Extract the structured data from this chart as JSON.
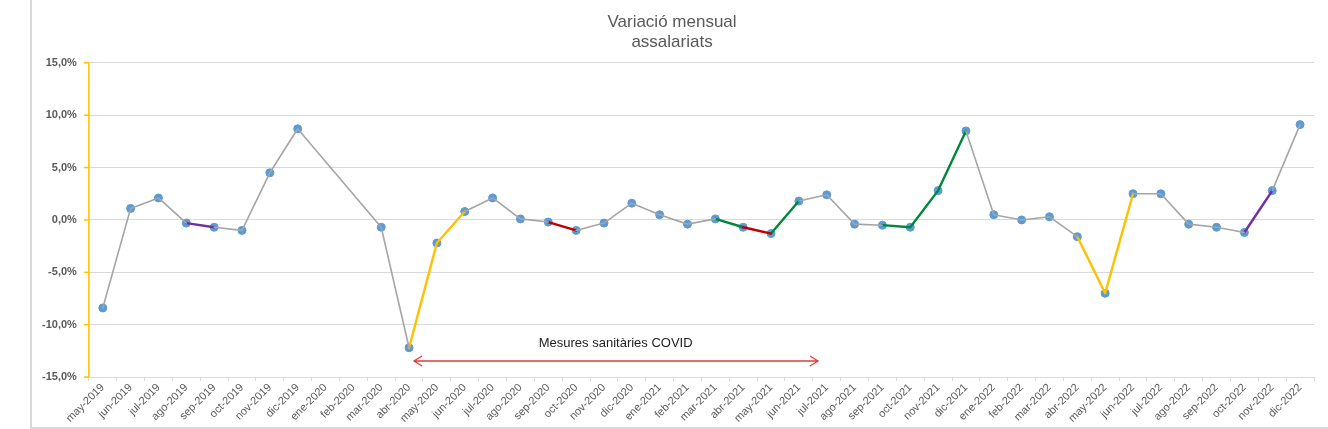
{
  "chart_data": {
    "type": "line",
    "title": "Variació mensual\nassalariats",
    "categories": [
      "may-2019",
      "jun-2019",
      "jul-2019",
      "ago-2019",
      "sep-2019",
      "oct-2019",
      "nov-2019",
      "dic-2019",
      "ene-2020",
      "feb-2020",
      "mar-2020",
      "abr-2020",
      "may-2020",
      "jun-2020",
      "jul-2020",
      "ago-2020",
      "sep-2020",
      "oct-2020",
      "nov-2020",
      "dic-2020",
      "ene-2021",
      "feb-2021",
      "mar-2021",
      "abr-2021",
      "may-2021",
      "jun-2021",
      "jul-2021",
      "ago-2021",
      "sep-2021",
      "oct-2021",
      "nov-2021",
      "dic-2021",
      "ene-2022",
      "feb-2022",
      "mar-2022",
      "abr-2022",
      "may-2022",
      "jun-2022",
      "jul-2022",
      "ago-2022",
      "sep-2022",
      "oct-2022",
      "nov-2022",
      "dic-2022"
    ],
    "series": [
      {
        "color": "#a5a5a5",
        "marker": "none",
        "values": [
          -8.4,
          1.1,
          2.1,
          -0.3,
          -0.7,
          -1.0,
          4.5,
          8.7,
          null,
          null,
          -0.7,
          -12.2,
          null,
          0.8,
          2.1,
          0.1,
          -0.2,
          -1.0,
          -0.3,
          1.6,
          0.5,
          -0.4,
          0.1,
          null,
          null,
          1.8,
          2.4,
          -0.4,
          -0.5,
          null,
          null,
          8.5,
          0.5,
          0.0,
          0.3,
          -1.6,
          null,
          2.5,
          2.5,
          -0.4,
          -0.7,
          -1.2,
          2.8,
          9.1
        ]
      },
      {
        "color": "#7030a0",
        "marker": "none",
        "values": [
          null,
          null,
          null,
          -0.3,
          -0.7,
          null,
          null,
          null,
          null,
          null,
          null,
          null,
          null,
          null,
          null,
          null,
          null,
          null,
          null,
          null,
          null,
          null,
          null,
          null,
          null,
          null,
          null,
          null,
          null,
          null,
          null,
          null,
          null,
          null,
          null,
          null,
          null,
          null,
          null,
          null,
          null,
          -1.2,
          2.8,
          null
        ]
      },
      {
        "color": "#ffc000",
        "marker": "none",
        "values": [
          null,
          null,
          null,
          null,
          null,
          null,
          null,
          null,
          null,
          null,
          null,
          -12.2,
          -2.2,
          0.8,
          null,
          null,
          null,
          null,
          null,
          null,
          null,
          null,
          null,
          null,
          null,
          null,
          null,
          null,
          null,
          null,
          null,
          null,
          null,
          null,
          null,
          -1.6,
          -7.0,
          2.5,
          null,
          null,
          null,
          null,
          null,
          null
        ]
      },
      {
        "color": "#c00000",
        "marker": "none",
        "values": [
          null,
          null,
          null,
          null,
          null,
          null,
          null,
          null,
          null,
          null,
          null,
          null,
          null,
          null,
          null,
          null,
          -0.2,
          -1.0,
          null,
          null,
          null,
          null,
          null,
          -0.7,
          -1.3,
          null,
          null,
          null,
          null,
          null,
          null,
          null,
          null,
          null,
          null,
          null,
          null,
          null,
          null,
          null,
          null,
          null,
          null,
          null
        ]
      },
      {
        "color": "#00873e",
        "marker": "none",
        "values": [
          null,
          null,
          null,
          null,
          null,
          null,
          null,
          null,
          null,
          null,
          null,
          null,
          null,
          null,
          null,
          null,
          null,
          null,
          null,
          null,
          null,
          null,
          0.1,
          -0.7,
          null,
          null,
          null,
          null,
          -0.5,
          -0.7,
          2.8,
          8.5,
          null,
          null,
          null,
          null,
          null,
          null,
          null,
          null,
          null,
          null,
          null,
          null
        ]
      },
      {
        "color": "#00873e",
        "marker": "none",
        "values": [
          null,
          null,
          null,
          null,
          null,
          null,
          null,
          null,
          null,
          null,
          null,
          null,
          null,
          null,
          null,
          null,
          null,
          null,
          null,
          null,
          null,
          null,
          null,
          null,
          -1.3,
          1.8,
          null,
          null,
          null,
          null,
          null,
          null,
          null,
          null,
          null,
          null,
          null,
          null,
          null,
          null,
          null,
          null,
          null,
          null
        ]
      },
      {
        "type": "scatter",
        "color": "#5b9bd5",
        "values": [
          -8.4,
          1.1,
          2.1,
          -0.3,
          -0.7,
          -1.0,
          4.5,
          8.7,
          null,
          null,
          -0.7,
          -12.2,
          -2.2,
          0.8,
          2.1,
          0.1,
          -0.2,
          -1.0,
          -0.3,
          1.6,
          0.5,
          -0.4,
          0.1,
          -0.7,
          -1.3,
          1.8,
          2.4,
          -0.4,
          -0.5,
          -0.7,
          2.8,
          8.5,
          0.5,
          0.0,
          0.3,
          -1.6,
          -7.0,
          2.5,
          2.5,
          -0.4,
          -0.7,
          -1.2,
          2.8,
          9.1
        ]
      }
    ],
    "ylim": [
      -15,
      15
    ],
    "yticks": [
      {
        "value": -15,
        "label": "-15,0%"
      },
      {
        "value": -10,
        "label": "-10,0%"
      },
      {
        "value": -5,
        "label": "-5,0%"
      },
      {
        "value": 0,
        "label": "0,0%"
      },
      {
        "value": 5,
        "label": "5,0%"
      },
      {
        "value": 10,
        "label": "10,0%"
      },
      {
        "value": 15,
        "label": "15,0%"
      }
    ],
    "grid": "y",
    "marker": "circle",
    "line_style": "solid",
    "legend": false,
    "annotations": [
      "Mesures sanitàries COVID"
    ]
  }
}
